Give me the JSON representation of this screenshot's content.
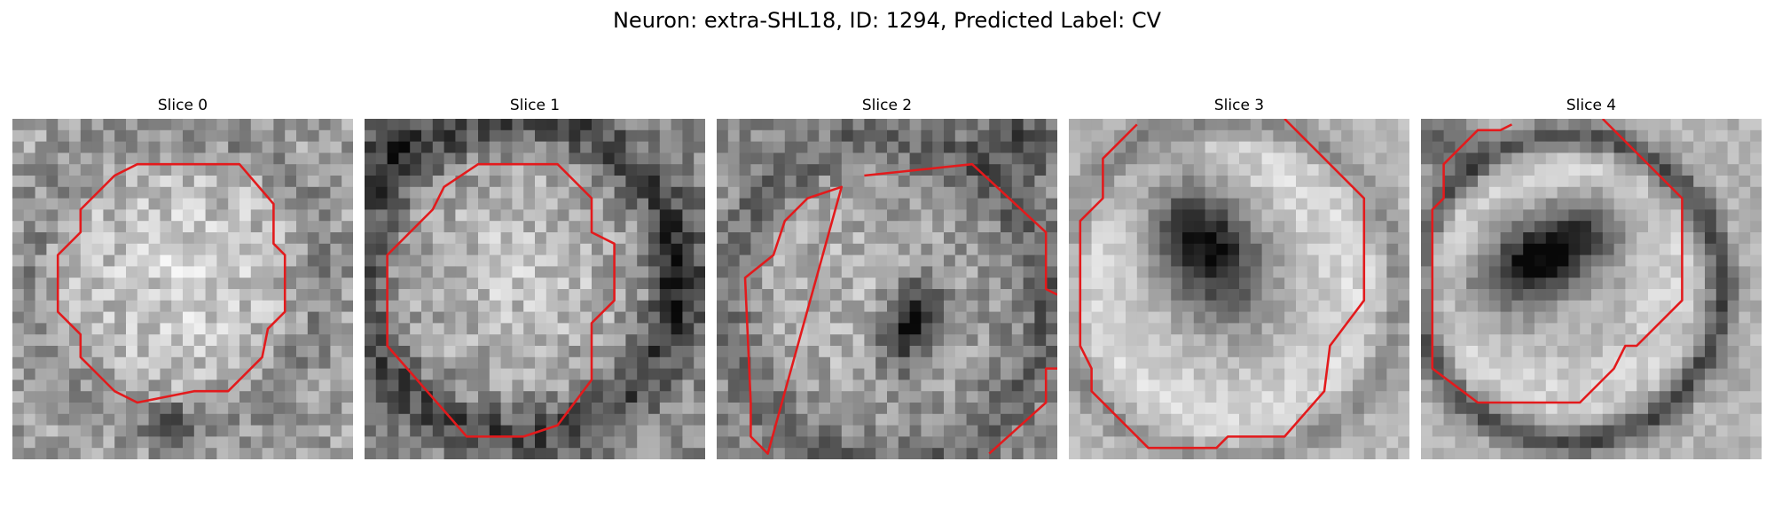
{
  "title": "Neuron: extra-SHL18, ID: 1294, Predicted Label: CV",
  "slices": [
    {
      "label": "Slice 0"
    },
    {
      "label": "Slice 1"
    },
    {
      "label": "Slice 2"
    },
    {
      "label": "Slice 3"
    },
    {
      "label": "Slice 4"
    }
  ],
  "colors": {
    "contour": "#e31a1c",
    "background": "#ffffff"
  }
}
